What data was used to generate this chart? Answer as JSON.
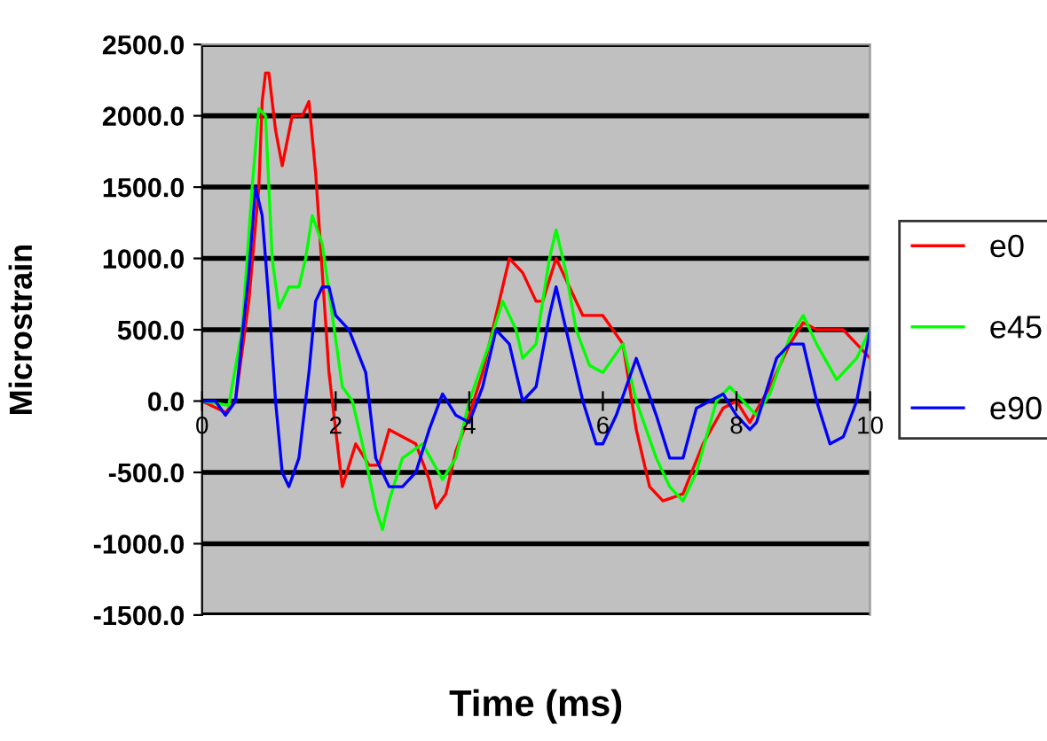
{
  "chart_data": {
    "type": "line",
    "xlabel": "Time (ms)",
    "ylabel": "Microstrain",
    "xlim": [
      0,
      10
    ],
    "ylim": [
      -1500,
      2500
    ],
    "xticks": [
      0,
      2,
      4,
      6,
      8,
      10
    ],
    "yticks": [
      {
        "value": -1500,
        "label": "-1500.0"
      },
      {
        "value": -1000,
        "label": "-1000.0"
      },
      {
        "value": -500,
        "label": "-500.0"
      },
      {
        "value": 0,
        "label": "0.0"
      },
      {
        "value": 500,
        "label": "500.0"
      },
      {
        "value": 1000,
        "label": "1000.0"
      },
      {
        "value": 1500,
        "label": "1500.0"
      },
      {
        "value": 2000,
        "label": "2000.0"
      },
      {
        "value": 2500,
        "label": "2500.0"
      }
    ],
    "grid": "y",
    "legend": "right",
    "marker": "none",
    "line_style": "solid",
    "series": [
      {
        "name": "e0",
        "color": "#ff0000",
        "x": [
          0,
          0.35,
          0.5,
          0.7,
          0.85,
          0.9,
          0.95,
          1.0,
          1.1,
          1.2,
          1.35,
          1.5,
          1.6,
          1.7,
          1.8,
          1.9,
          2.0,
          2.1,
          2.2,
          2.3,
          2.5,
          2.65,
          2.8,
          3.0,
          3.2,
          3.4,
          3.5,
          3.65,
          3.8,
          4.0,
          4.2,
          4.5,
          4.6,
          4.8,
          5.0,
          5.1,
          5.3,
          5.5,
          5.7,
          6.0,
          6.3,
          6.5,
          6.7,
          6.9,
          7.2,
          7.5,
          7.8,
          8.0,
          8.2,
          8.5,
          8.8,
          9.0,
          9.2,
          9.4,
          9.6,
          9.8,
          10
        ],
        "values": [
          0,
          -80,
          0,
          700,
          1500,
          2100,
          2300,
          2300,
          1900,
          1650,
          2000,
          2000,
          2100,
          1600,
          900,
          200,
          -200,
          -600,
          -450,
          -300,
          -450,
          -450,
          -200,
          -250,
          -300,
          -550,
          -750,
          -650,
          -350,
          -100,
          200,
          800,
          1000,
          900,
          700,
          700,
          1000,
          800,
          600,
          600,
          400,
          -200,
          -600,
          -700,
          -650,
          -300,
          -50,
          0,
          -150,
          100,
          400,
          550,
          500,
          500,
          500,
          400,
          300
        ]
      },
      {
        "name": "e45",
        "color": "#00ff00",
        "x": [
          0,
          0.4,
          0.6,
          0.75,
          0.85,
          0.95,
          1.05,
          1.15,
          1.3,
          1.45,
          1.55,
          1.65,
          1.8,
          1.95,
          2.1,
          2.25,
          2.4,
          2.6,
          2.7,
          2.8,
          3.0,
          3.3,
          3.6,
          3.8,
          4.0,
          4.3,
          4.5,
          4.7,
          4.8,
          5.0,
          5.2,
          5.3,
          5.45,
          5.6,
          5.8,
          6.0,
          6.3,
          6.5,
          6.8,
          7.0,
          7.2,
          7.4,
          7.7,
          7.9,
          8.0,
          8.3,
          8.5,
          8.8,
          9.0,
          9.2,
          9.5,
          9.8,
          10
        ],
        "values": [
          0,
          -30,
          500,
          1500,
          2050,
          2000,
          1000,
          650,
          800,
          800,
          1000,
          1300,
          1100,
          600,
          100,
          0,
          -300,
          -750,
          -900,
          -700,
          -400,
          -300,
          -550,
          -400,
          0,
          400,
          700,
          500,
          300,
          400,
          1000,
          1200,
          900,
          500,
          250,
          200,
          400,
          0,
          -400,
          -600,
          -700,
          -500,
          0,
          100,
          50,
          -100,
          50,
          450,
          600,
          400,
          150,
          300,
          500
        ]
      },
      {
        "name": "e90",
        "color": "#0000ff",
        "x": [
          0,
          0.2,
          0.35,
          0.5,
          0.7,
          0.8,
          0.9,
          1.0,
          1.1,
          1.2,
          1.3,
          1.45,
          1.6,
          1.7,
          1.8,
          1.9,
          2.0,
          2.2,
          2.45,
          2.6,
          2.8,
          3.0,
          3.2,
          3.4,
          3.6,
          3.8,
          4.0,
          4.2,
          4.4,
          4.6,
          4.8,
          5.0,
          5.2,
          5.3,
          5.45,
          5.7,
          5.9,
          6.0,
          6.2,
          6.5,
          6.8,
          7.0,
          7.2,
          7.4,
          7.6,
          7.8,
          8.0,
          8.2,
          8.3,
          8.6,
          8.8,
          9.0,
          9.2,
          9.4,
          9.6,
          9.8,
          10
        ],
        "values": [
          0,
          0,
          -100,
          0,
          900,
          1500,
          1300,
          700,
          0,
          -500,
          -600,
          -400,
          200,
          700,
          800,
          800,
          600,
          500,
          200,
          -400,
          -600,
          -600,
          -500,
          -200,
          50,
          -100,
          -150,
          100,
          500,
          400,
          0,
          100,
          600,
          800,
          500,
          0,
          -300,
          -300,
          -100,
          300,
          -100,
          -400,
          -400,
          -50,
          0,
          50,
          -100,
          -200,
          -150,
          300,
          400,
          400,
          0,
          -300,
          -250,
          0,
          500
        ]
      }
    ]
  }
}
